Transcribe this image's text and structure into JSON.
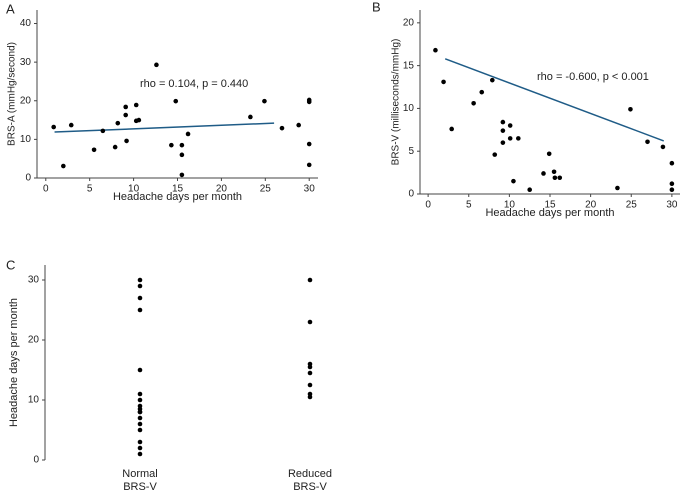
{
  "chart_data": [
    {
      "type": "scatter",
      "label": "A",
      "xlabel": "Headache days per month",
      "ylabel": "BRS-A (mmHg/second)",
      "annotation": "rho = 0.104, p = 0.440",
      "x": [
        0.9,
        2,
        2.9,
        5.5,
        6.5,
        7.9,
        8.2,
        9.1,
        9.1,
        9.2,
        10.3,
        10.3,
        10.6,
        12.6,
        14.3,
        14.8,
        15.5,
        15.5,
        15.5,
        16.2,
        23.3,
        24.9,
        26.9,
        28.8,
        30,
        30,
        30,
        30
      ],
      "values": [
        13.2,
        3.1,
        13.7,
        7.3,
        12.2,
        8.0,
        14.2,
        18.4,
        16.3,
        9.6,
        18.9,
        14.8,
        15.0,
        29.3,
        8.5,
        19.9,
        6.0,
        0.8,
        8.5,
        11.4,
        15.8,
        19.9,
        12.9,
        13.7,
        19.7,
        20.2,
        8.8,
        3.4
      ],
      "fit": {
        "x": [
          1,
          26
        ],
        "values": [
          11.9,
          14.2
        ]
      },
      "color": "#000000",
      "fit_color": "#1f5c87",
      "xlim": [
        -1,
        31
      ],
      "ylim": [
        0,
        43.5
      ],
      "xticks": [
        0,
        5,
        10,
        15,
        20,
        25,
        30
      ],
      "yticks": [
        0,
        10,
        20,
        30,
        40
      ]
    },
    {
      "type": "scatter",
      "label": "B",
      "xlabel": "Headache days per month",
      "ylabel": "BRS-V (milliseconds/mmHg)",
      "annotation": "rho = -0.600, p <  0.001",
      "x": [
        0.9,
        1.9,
        2.9,
        5.6,
        6.6,
        7.9,
        8.2,
        9.2,
        9.2,
        9.2,
        10.1,
        10.1,
        10.5,
        11.1,
        12.5,
        14.2,
        14.9,
        15.5,
        15.6,
        16.2,
        23.3,
        24.9,
        27,
        28.9,
        30,
        30,
        30
      ],
      "values": [
        16.8,
        13.1,
        7.6,
        10.6,
        11.9,
        13.3,
        4.6,
        8.4,
        7.4,
        6.0,
        8.0,
        6.5,
        1.5,
        6.5,
        0.5,
        2.4,
        4.7,
        2.6,
        1.9,
        1.9,
        0.7,
        9.9,
        6.1,
        5.5,
        3.6,
        1.2,
        0.5
      ],
      "fit": {
        "x": [
          2.1,
          29
        ],
        "values": [
          15.8,
          6.2
        ]
      },
      "color": "#000000",
      "fit_color": "#1f5c87",
      "xlim": [
        -1,
        31
      ],
      "ylim": [
        0,
        21.5
      ],
      "xticks": [
        0,
        5,
        10,
        15,
        20,
        25,
        30
      ],
      "yticks": [
        0,
        5,
        10,
        15,
        20
      ]
    },
    {
      "type": "strip",
      "label": "C",
      "ylabel": "Headache days per month",
      "categories": [
        "Normal\nBRS-V",
        "Reduced\nBRS-V"
      ],
      "values": [
        [
          30,
          29,
          27,
          25,
          15,
          11,
          10,
          9,
          8.5,
          8,
          8,
          7,
          6,
          5,
          3,
          2,
          1
        ],
        [
          30,
          23,
          16,
          15.5,
          14.5,
          12.5,
          11,
          10.5
        ]
      ],
      "color": "#000000",
      "ylim": [
        0,
        32.5
      ],
      "yticks": [
        0,
        10,
        20,
        30
      ]
    }
  ]
}
